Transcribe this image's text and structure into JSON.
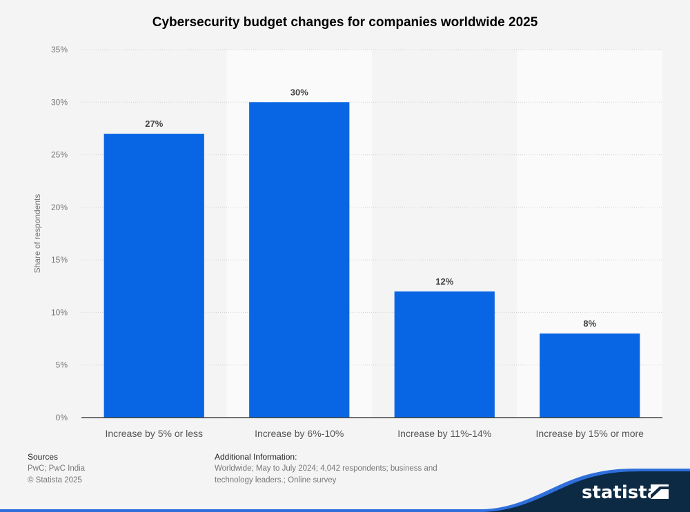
{
  "chart_data": {
    "type": "bar",
    "title": "Cybersecurity budget changes for companies worldwide 2025",
    "xlabel": "",
    "ylabel": "Share of respondents",
    "categories": [
      "Increase by 5% or less",
      "Increase by 6%-10%",
      "Increase by 11%-14%",
      "Increase by 15% or more"
    ],
    "values": [
      27,
      30,
      12,
      8
    ],
    "value_labels": [
      "27%",
      "30%",
      "12%",
      "8%"
    ],
    "ylim": [
      0,
      35
    ],
    "yticks": [
      0,
      5,
      10,
      15,
      20,
      25,
      30,
      35
    ],
    "ytick_labels": [
      "0%",
      "5%",
      "10%",
      "15%",
      "20%",
      "25%",
      "30%",
      "35%"
    ],
    "grid": true,
    "legend": "none",
    "bar_color": "#0866e4"
  },
  "footer": {
    "sources_label": "Sources",
    "sources_lines": [
      "PwC; PwC India",
      "© Statista 2025"
    ],
    "additional_label": "Additional Information:",
    "additional_lines": [
      "Worldwide; May to July 2024; 4,042 respondents; business and",
      "technology leaders.; Online survey"
    ]
  },
  "brand": {
    "name": "statista",
    "accent": "#2f6fdc",
    "dark": "#0d2a45"
  }
}
